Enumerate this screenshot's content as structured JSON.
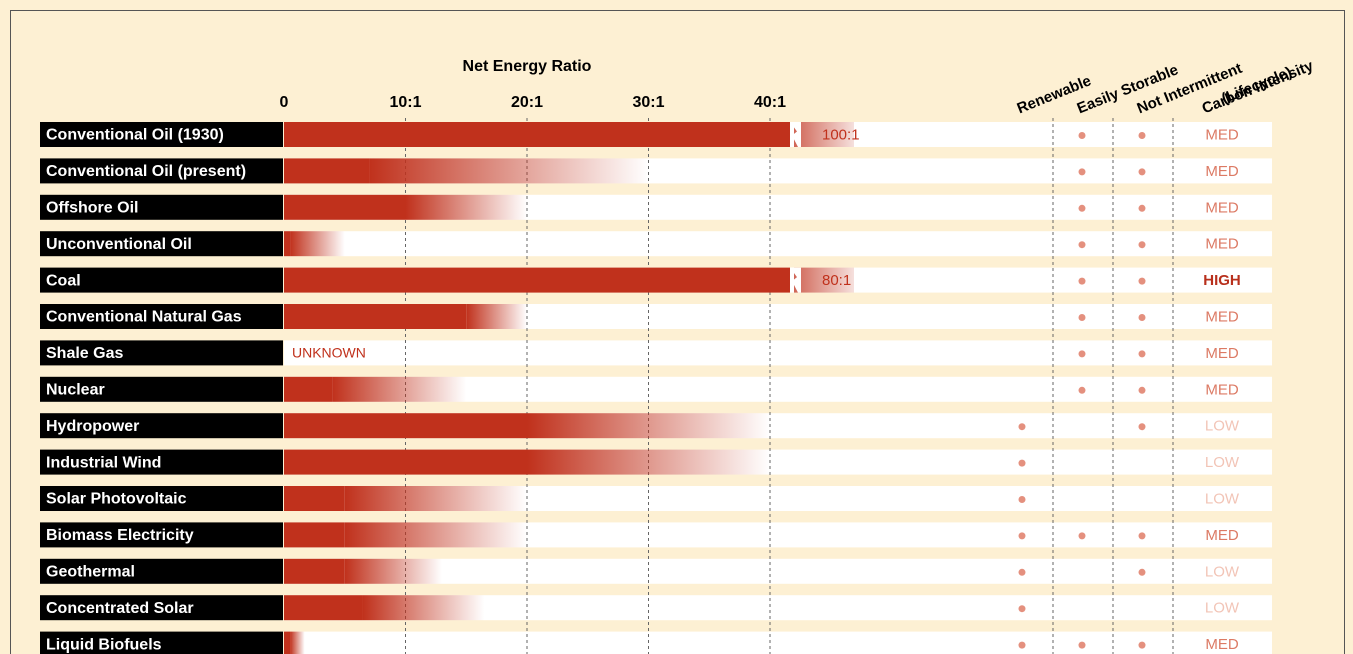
{
  "chart_data": {
    "type": "range_bar",
    "title": "Net Energy Ratio",
    "categories": [
      "Conventional Oil (1930)",
      "Conventional Oil (present)",
      "Offshore Oil",
      "Unconventional Oil",
      "Coal",
      "Conventional Natural Gas",
      "Shale Gas",
      "Nuclear",
      "Hydropower",
      "Industrial Wind",
      "Solar Photovoltaic",
      "Biomass Electricity",
      "Geothermal",
      "Concentrated Solar",
      "Liquid Biofuels"
    ],
    "low": [
      null,
      7,
      10,
      0.5,
      null,
      15,
      null,
      4,
      20,
      20,
      5,
      5,
      5,
      6.5,
      0.5
    ],
    "high": [
      100,
      30,
      20,
      5,
      80,
      20,
      null,
      15,
      40,
      40,
      20,
      20,
      13,
      16.5,
      1.7
    ],
    "value_labels": [
      "100:1",
      null,
      null,
      null,
      "80:1",
      null,
      "UNKNOWN",
      null,
      null,
      null,
      null,
      null,
      null,
      null,
      null
    ],
    "color": "#c0311c",
    "xlim": [
      0,
      40
    ],
    "xticks": [
      0,
      {
        "value": 10,
        "label": "10:1"
      },
      {
        "value": 20,
        "label": "20:1"
      },
      {
        "value": 30,
        "label": "30:1"
      },
      {
        "value": 40,
        "label": "40:1"
      }
    ],
    "grid": true,
    "column_headers": [
      "Renewable",
      "Easily Storable",
      "Not Intermittent",
      [
        "Carbon Intensity",
        "(Lifecycle)"
      ]
    ],
    "renewable": [
      false,
      false,
      false,
      false,
      false,
      false,
      false,
      false,
      true,
      true,
      true,
      true,
      true,
      true,
      true
    ],
    "easily_storable": [
      true,
      true,
      true,
      true,
      true,
      true,
      true,
      true,
      false,
      false,
      false,
      true,
      false,
      false,
      true
    ],
    "not_intermittent": [
      true,
      true,
      true,
      true,
      true,
      true,
      true,
      true,
      true,
      false,
      false,
      true,
      true,
      false,
      true
    ],
    "carbon_intensity": [
      "MED",
      "MED",
      "MED",
      "MED",
      "HIGH",
      "MED",
      "MED",
      "MED",
      "LOW",
      "LOW",
      "LOW",
      "MED",
      "LOW",
      "LOW",
      "MED"
    ],
    "carbon_colors": {
      "LOW": "#f2c4b6",
      "MED": "#dc7a64",
      "HIGH": "#b8301c"
    },
    "dot_color": "#e4907e"
  }
}
